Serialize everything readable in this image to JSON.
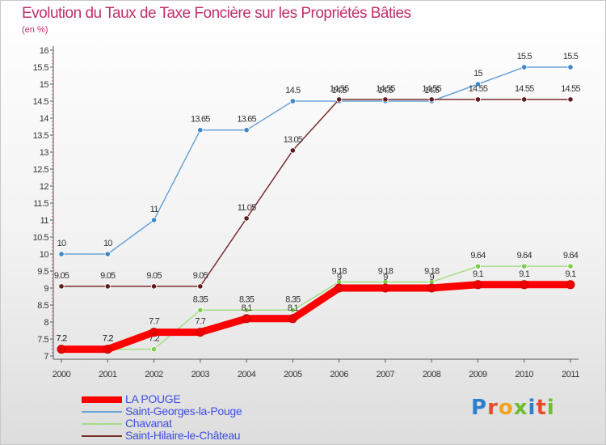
{
  "title": "Evolution du Taux de Taxe Foncière sur les Propriétés Bâties",
  "unit_label": "(en %)",
  "brand": {
    "text": "Proxiti",
    "letter_colors": [
      "#2a7fd1",
      "#e84a2c",
      "#f2a31b",
      "#6cbf2a",
      "#2a7fd1",
      "#e84a2c",
      "#6cbf2a"
    ]
  },
  "chart_data": {
    "type": "line",
    "x": [
      "2000",
      "2001",
      "2002",
      "2003",
      "2004",
      "2005",
      "2006",
      "2007",
      "2008",
      "2009",
      "2010",
      "2011"
    ],
    "yticks": [
      "7",
      "7.5",
      "8",
      "8.5",
      "9",
      "9.5",
      "10",
      "10.5",
      "11",
      "11.5",
      "12",
      "12.5",
      "13",
      "13.5",
      "14",
      "14.5",
      "15",
      "15.5",
      "16"
    ],
    "ylim": [
      7,
      16
    ],
    "grid": false,
    "legend_position": "bottom-left",
    "series": [
      {
        "name": "Saint-Georges-la-Pouge",
        "color": "#6aa4d9",
        "marker": "#3d86cc",
        "values": [
          10,
          10,
          11,
          13.65,
          13.65,
          14.5,
          14.5,
          14.5,
          14.5,
          15,
          15.5,
          15.5
        ],
        "labels": [
          "10",
          "10",
          "11",
          "13.65",
          "13.65",
          "14.5",
          "14.5",
          "14.5",
          "14.5",
          "15",
          "15.5",
          "15.5"
        ]
      },
      {
        "name": "Saint-Hilaire-le-Château",
        "color": "#7b2e2e",
        "marker": "#5e1e1e",
        "values": [
          9.05,
          9.05,
          9.05,
          9.05,
          11.05,
          13.05,
          14.55,
          14.55,
          14.55,
          14.55,
          14.55,
          14.55
        ],
        "labels": [
          "9.05",
          "9.05",
          "9.05",
          "9.05",
          "11.05",
          "13.05",
          "14.55",
          "14.55",
          "14.55",
          "14.55",
          "14.55",
          "14.55"
        ]
      },
      {
        "name": "Chavanat",
        "color": "#a6dd86",
        "marker": "#7ccd4a",
        "values": [
          7.2,
          7.2,
          7.2,
          8.35,
          8.35,
          8.35,
          9.18,
          9.18,
          9.18,
          9.64,
          9.64,
          9.64
        ],
        "labels": [
          "7.2",
          "7.2",
          "7.2",
          "8.35",
          "8.35",
          "8.35",
          "9.18",
          "9.18",
          "9.18",
          "9.64",
          "9.64",
          "9.64"
        ]
      },
      {
        "name": "LA POUGE",
        "color": "#ff0000",
        "marker": "#ee0000",
        "values": [
          7.2,
          7.2,
          7.7,
          7.7,
          8.1,
          8.1,
          9,
          9,
          9,
          9.1,
          9.1,
          9.1
        ],
        "labels": [
          "7.2",
          "7.2",
          "7.7",
          "7.7",
          "8.1",
          "8.1",
          "9",
          "9",
          "9",
          "9.1",
          "9.1",
          "9.1"
        ]
      }
    ],
    "legend": [
      "LA POUGE",
      "Saint-Georges-la-Pouge",
      "Chavanat",
      "Saint-Hilaire-le-Château"
    ]
  }
}
